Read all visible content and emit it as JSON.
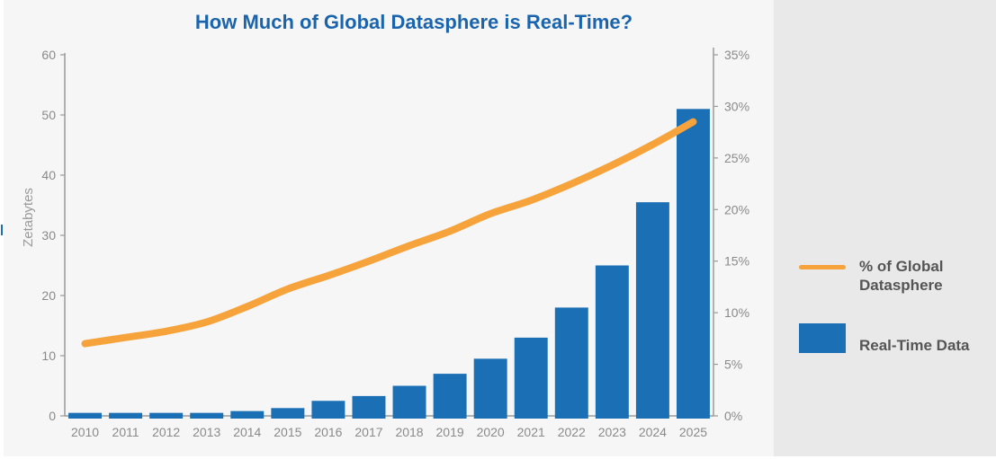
{
  "chart_data": {
    "type": "bar",
    "title": "How Much of Global Datasphere is Real-Time?",
    "categories": [
      "2010",
      "2011",
      "2012",
      "2013",
      "2014",
      "2015",
      "2016",
      "2017",
      "2018",
      "2019",
      "2020",
      "2021",
      "2022",
      "2023",
      "2024",
      "2025"
    ],
    "ylabel": "Zetabytes",
    "ylim": [
      0,
      60
    ],
    "yticks": [
      "0",
      "10",
      "20",
      "30",
      "40",
      "50",
      "60"
    ],
    "y2lim": [
      0,
      35
    ],
    "y2ticks": [
      "0%",
      "5%",
      "10%",
      "15%",
      "20%",
      "25%",
      "30%",
      "35%"
    ],
    "series": [
      {
        "name": "Real-Time Data",
        "type": "bar",
        "axis": "left",
        "color": "#1a6fb5",
        "values": [
          0.5,
          0.5,
          0.5,
          0.5,
          0.8,
          1.3,
          2.5,
          3.3,
          5,
          7,
          9.5,
          13,
          18,
          25,
          35.5,
          51
        ]
      },
      {
        "name": "% of Global Datasphere",
        "type": "line",
        "axis": "right",
        "color": "#f7a33b",
        "values": [
          7,
          7.6,
          8.2,
          9.1,
          10.6,
          12.3,
          13.6,
          15.0,
          16.5,
          17.9,
          19.6,
          20.9,
          22.5,
          24.3,
          26.3,
          28.5
        ]
      }
    ],
    "grid": false,
    "legend": "right"
  }
}
